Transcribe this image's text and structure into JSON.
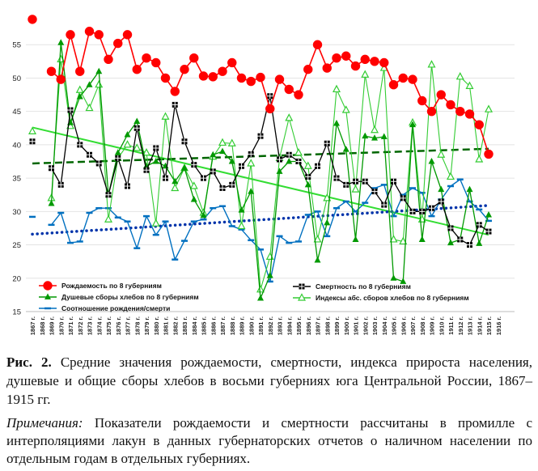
{
  "chart_data": {
    "type": "line",
    "x": [
      1867,
      1868,
      1869,
      1870,
      1871,
      1872,
      1873,
      1874,
      1875,
      1876,
      1877,
      1878,
      1879,
      1880,
      1881,
      1882,
      1883,
      1884,
      1885,
      1886,
      1887,
      1888,
      1889,
      1890,
      1891,
      1892,
      1893,
      1894,
      1895,
      1896,
      1897,
      1898,
      1899,
      1900,
      1901,
      1902,
      1903,
      1904,
      1905,
      1906,
      1907,
      1908,
      1909,
      1910,
      1911,
      1912,
      1913,
      1914,
      1915
    ],
    "xticklabels": [
      "1867 г.",
      "1868 г.",
      "1869 г.",
      "1870 г.",
      "1871 г.",
      "1872 г.",
      "1873 г.",
      "1874 г.",
      "1875 г.",
      "1876 г.",
      "1877 г.",
      "1878 г.",
      "1879 г.",
      "1880 г.",
      "1881 г.",
      "1882 г.",
      "1883 г.",
      "1884 г.",
      "1885 г.",
      "1886 г.",
      "1887 г.",
      "1888 г.",
      "1889 г.",
      "1890 г.",
      "1891 г.",
      "1892 г.",
      "1893 г.",
      "1894 г.",
      "1895 г.",
      "1896 г.",
      "1897 г.",
      "1898 г.",
      "1899 г.",
      "1900 г.",
      "1901 г.",
      "1902 г.",
      "1903 г.",
      "1904 г.",
      "1905 г.",
      "1906 г.",
      "1907 г.",
      "1908 г.",
      "1909 г.",
      "1910 г.",
      "1911 г.",
      "1912 г.",
      "1913 г.",
      "1914 г.",
      "1915 г.",
      "1916 г."
    ],
    "ylim": [
      15,
      60
    ],
    "yticks": [
      15,
      20,
      25,
      30,
      35,
      40,
      45,
      50,
      55
    ],
    "series": [
      {
        "name": "Рождаемость по 8 губерниям",
        "color": "#ff0000",
        "marker": "circle",
        "values": [
          58.8,
          null,
          51,
          49.8,
          56.5,
          51,
          57,
          56.5,
          52.8,
          55.2,
          56.5,
          51.3,
          53,
          52.3,
          50,
          48,
          51.3,
          53,
          50.3,
          50.2,
          51,
          52.3,
          50,
          49.5,
          50.1,
          45.4,
          49.8,
          48.3,
          47.5,
          51.3,
          55,
          51.5,
          53,
          53.3,
          51.8,
          52.8,
          52.5,
          52.3,
          49,
          50,
          49.8,
          46.6,
          45,
          47.5,
          46,
          45,
          44.6,
          43,
          38.6
        ]
      },
      {
        "name": "Смертность по 8 губерниям",
        "color": "#000000",
        "marker": "square",
        "values": [
          40.5,
          null,
          36.5,
          34,
          45.2,
          40,
          38.5,
          37.2,
          32.5,
          38,
          33.8,
          42.5,
          36.2,
          39.5,
          35,
          46,
          40.5,
          37,
          35,
          36,
          33.5,
          34,
          36.8,
          38.6,
          41.3,
          47.3,
          37.8,
          38.5,
          37.5,
          35.2,
          36.8,
          40.2,
          35,
          34,
          34.5,
          34.5,
          33,
          31,
          34.5,
          32,
          30,
          30,
          30.5,
          31.5,
          27.5,
          25.8,
          25,
          28,
          27
        ]
      },
      {
        "name": "Душевые сборы хлебов по 8 губерниям",
        "color": "#009900",
        "marker": "triangle-filled",
        "values": [
          null,
          null,
          31.2,
          55.3,
          43.3,
          47.2,
          49,
          51,
          32.5,
          38.8,
          41.5,
          43.5,
          36.8,
          37.5,
          36.8,
          34.5,
          36.5,
          31.8,
          29.4,
          38.5,
          39,
          37.5,
          30.2,
          33,
          17,
          20.4,
          36,
          37.5,
          37.5,
          34,
          22.7,
          28.3,
          43.2,
          39.3,
          25.8,
          41.3,
          41,
          41.2,
          20,
          19.5,
          43,
          25.8,
          37.5,
          33.3,
          25.3,
          25.8,
          33.3,
          25.2,
          29.5
        ]
      },
      {
        "name": "Индексы абс. сборов хлебов по 8 губерниям",
        "color": "#33cc33",
        "marker": "triangle-open",
        "values": [
          42,
          null,
          32,
          52.8,
          42.8,
          48.2,
          45.5,
          49,
          28.8,
          38,
          40,
          39.5,
          38.8,
          28.2,
          44.2,
          33.5,
          36.5,
          33.8,
          29.8,
          38.2,
          40.3,
          40.2,
          27.8,
          37.2,
          18.3,
          23.2,
          38,
          44,
          38.8,
          36.8,
          25.8,
          32,
          48.3,
          45.2,
          33.3,
          50.5,
          42.2,
          51.5,
          25.8,
          25.5,
          43.3,
          28.8,
          52,
          38.5,
          35.2,
          50.2,
          48.8,
          37.8,
          45.3
        ]
      },
      {
        "name": "Соотношение рождения/смерти",
        "color": "#0070c0",
        "marker": "dash",
        "values": [
          29.2,
          null,
          28,
          29.8,
          25.3,
          25.5,
          29.8,
          30.5,
          30.5,
          29.1,
          28.5,
          24.5,
          29.3,
          26.5,
          28.5,
          22.8,
          25.6,
          28.5,
          28.8,
          30.5,
          30.8,
          27.8,
          27.3,
          25.7,
          24.3,
          19.5,
          26.3,
          25.3,
          25.5,
          29.5,
          30,
          26.3,
          30.5,
          31.5,
          30,
          31.3,
          33.5,
          34,
          29.3,
          32.5,
          33.5,
          32.8,
          29.3,
          31.8,
          33.8,
          34.8,
          31.5,
          30.3,
          28.6
        ]
      }
    ],
    "trendlines": [
      {
        "of": "Душевые сборы хлебов по 8 губерниям",
        "color": "#33dd33",
        "style": "solid",
        "from": [
          1867,
          42.6
        ],
        "to": [
          1915,
          26.5
        ]
      },
      {
        "of": "Смертность по 8 губерниям",
        "color": "#006600",
        "style": "dashed",
        "from": [
          1867,
          37.2
        ],
        "to": [
          1915,
          39.4
        ]
      },
      {
        "of": "Соотношение рождения/смерти",
        "color": "#0033aa",
        "style": "dotted",
        "from": [
          1867,
          26.6
        ],
        "to": [
          1915,
          30.9
        ]
      }
    ],
    "legend": [
      {
        "label": "Рождаемость по 8 губерниям",
        "series": 0
      },
      {
        "label": "Смертность по 8 губерниям",
        "series": 1
      },
      {
        "label": "Душевые сборы хлебов по 8 губерниям",
        "series": 2
      },
      {
        "label": "Индексы абс. сборов хлебов по 8 губерниям",
        "series": 3
      },
      {
        "label": "Соотношение рождения/смерти",
        "series": 4
      }
    ],
    "legend_placement": "bottom, inside plot"
  },
  "caption": {
    "label": "Рис. 2.",
    "text": " Средние значения рождаемости, смертности, индекса прироста населения, душевые и общие сборы хлебов в восьми губерниях юга Центральной России, 1867–1915 гг."
  },
  "notes": {
    "label": "Примечания:",
    "text": " Показатели рождаемости и смертности рассчитаны в промилле с интерполяциями лакун в данных губернаторских отчетов о наличном населении по отдельным годам в отдельных губерниях."
  }
}
